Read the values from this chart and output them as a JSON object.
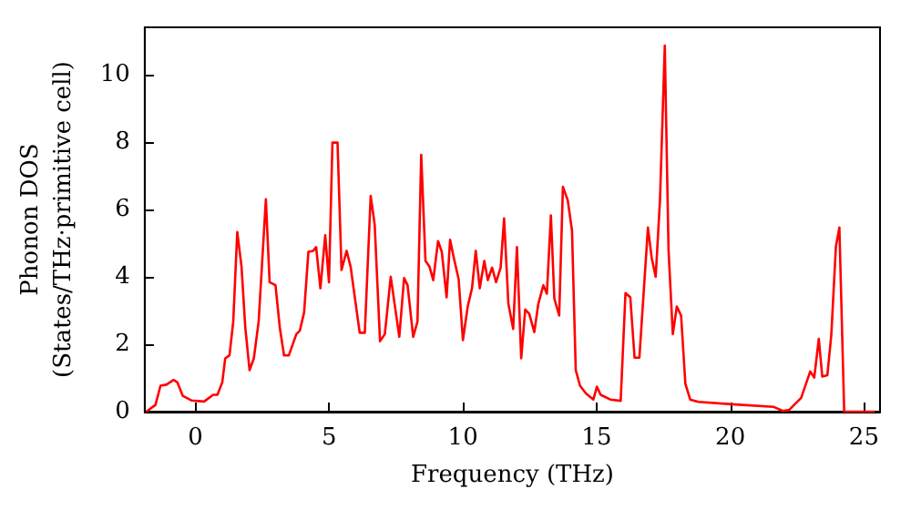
{
  "chart_data": {
    "type": "line",
    "xlabel": "Frequency (THz)",
    "ylabel": "Phonon DOS\n(States/THz·primitive cell)",
    "xlim": [
      -1.9,
      25.6
    ],
    "ylim": [
      0,
      11.4
    ],
    "xticks": [
      0,
      5,
      10,
      15,
      20,
      25
    ],
    "yticks": [
      0,
      2,
      4,
      6,
      8,
      10
    ],
    "marker": "none",
    "line_style": "solid",
    "series": [
      {
        "color": "#ff0000",
        "x": [
          -1.84,
          -1.5,
          -1.31,
          -1.09,
          -0.82,
          -0.68,
          -0.48,
          -0.14,
          0.32,
          0.66,
          0.82,
          1.0,
          1.11,
          1.27,
          1.41,
          1.56,
          1.72,
          1.86,
          2.02,
          2.18,
          2.36,
          2.63,
          2.77,
          2.99,
          3.15,
          3.31,
          3.49,
          3.77,
          3.9,
          4.06,
          4.22,
          4.4,
          4.51,
          4.67,
          4.85,
          4.99,
          5.12,
          5.31,
          5.46,
          5.65,
          5.8,
          5.99,
          6.14,
          6.33,
          6.55,
          6.7,
          6.9,
          7.08,
          7.3,
          7.62,
          7.8,
          7.93,
          8.14,
          8.3,
          8.44,
          8.6,
          8.75,
          8.89,
          9.07,
          9.21,
          9.39,
          9.52,
          9.66,
          9.84,
          10.0,
          10.18,
          10.34,
          10.48,
          10.63,
          10.8,
          10.93,
          11.09,
          11.24,
          11.41,
          11.54,
          11.7,
          11.88,
          12.02,
          12.18,
          12.33,
          12.48,
          12.67,
          12.82,
          13.01,
          13.14,
          13.29,
          13.42,
          13.6,
          13.74,
          13.92,
          14.08,
          14.22,
          14.38,
          14.6,
          14.88,
          15.01,
          15.15,
          15.51,
          15.9,
          16.08,
          16.26,
          16.42,
          16.6,
          16.92,
          17.06,
          17.21,
          17.37,
          17.55,
          17.69,
          17.85,
          18.0,
          18.16,
          18.32,
          18.5,
          18.8,
          20.05,
          21.63,
          21.97,
          22.2,
          22.65,
          22.99,
          23.14,
          23.31,
          23.44,
          23.63,
          23.78,
          23.95,
          24.08,
          24.26,
          25.03,
          25.4
        ],
        "values": [
          0.0,
          0.2,
          0.77,
          0.8,
          0.94,
          0.87,
          0.47,
          0.33,
          0.3,
          0.5,
          0.5,
          0.87,
          1.58,
          1.67,
          2.67,
          5.33,
          4.3,
          2.5,
          1.23,
          1.58,
          2.67,
          6.3,
          3.84,
          3.75,
          2.5,
          1.67,
          1.67,
          2.3,
          2.4,
          2.94,
          4.74,
          4.77,
          4.88,
          3.66,
          5.23,
          3.84,
          7.98,
          7.98,
          4.2,
          4.77,
          4.3,
          3.2,
          2.34,
          2.34,
          6.4,
          5.55,
          2.09,
          2.3,
          4.0,
          2.22,
          3.96,
          3.75,
          2.22,
          2.67,
          7.62,
          4.47,
          4.3,
          3.9,
          5.06,
          4.74,
          3.39,
          5.1,
          4.56,
          3.93,
          2.12,
          3.12,
          3.66,
          4.77,
          3.66,
          4.47,
          3.9,
          4.27,
          3.84,
          4.27,
          5.73,
          3.2,
          2.45,
          4.88,
          1.58,
          3.03,
          2.9,
          2.36,
          3.2,
          3.75,
          3.5,
          5.82,
          3.35,
          2.85,
          6.67,
          6.27,
          5.37,
          1.23,
          0.77,
          0.54,
          0.36,
          0.74,
          0.5,
          0.36,
          0.32,
          3.52,
          3.39,
          1.6,
          1.6,
          5.46,
          4.56,
          4.0,
          6.27,
          10.86,
          4.8,
          2.3,
          3.12,
          2.85,
          0.83,
          0.36,
          0.29,
          0.22,
          0.14,
          0.02,
          0.05,
          0.41,
          1.19,
          1.01,
          2.16,
          1.04,
          1.08,
          2.3,
          4.9,
          5.46,
          0.0,
          0.0,
          0.0
        ]
      }
    ]
  }
}
